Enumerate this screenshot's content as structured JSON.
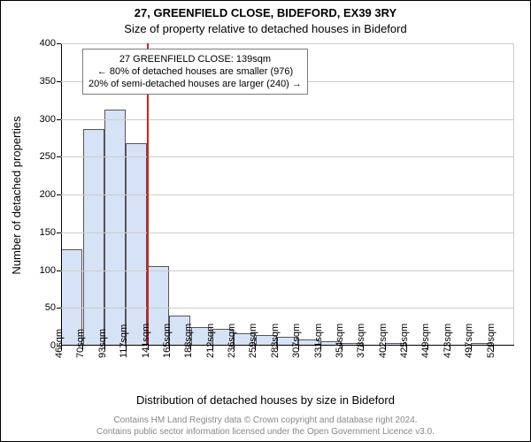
{
  "title1": "27, GREENFIELD CLOSE, BIDEFORD, EX39 3RY",
  "title2": "Size of property relative to detached houses in Bideford",
  "ylabel": "Number of detached properties",
  "xlabel": "Distribution of detached houses by size in Bideford",
  "annotation": {
    "line1": "27 GREENFIELD CLOSE: 139sqm",
    "line2": "← 80% of detached houses are smaller (976)",
    "line3": "20% of semi-detached houses are larger (240) →"
  },
  "footer": {
    "line1": "Contains HM Land Registry data © Crown copyright and database right 2024.",
    "line2": "Contains public sector information licensed under the Open Government Licence v3.0."
  },
  "chart": {
    "type": "histogram",
    "background_color": "#ffffff",
    "grid_color": "#cccccc",
    "bar_fill": "#d6e2f5",
    "bar_border": "#555555",
    "marker_color": "#d62020",
    "ylim": [
      0,
      400
    ],
    "ytick_step": 50,
    "yticks": [
      0,
      50,
      100,
      150,
      200,
      250,
      300,
      350,
      400
    ],
    "xticks": [
      "46sqm",
      "70sqm",
      "93sqm",
      "117sqm",
      "141sqm",
      "165sqm",
      "188sqm",
      "212sqm",
      "236sqm",
      "259sqm",
      "283sqm",
      "307sqm",
      "331sqm",
      "354sqm",
      "378sqm",
      "402sqm",
      "425sqm",
      "449sqm",
      "473sqm",
      "497sqm",
      "520sqm"
    ],
    "values": [
      128,
      287,
      312,
      268,
      105,
      40,
      25,
      22,
      16,
      14,
      12,
      8,
      6,
      3,
      0,
      4,
      0,
      0,
      0,
      4,
      0
    ],
    "marker_index": 4,
    "label_fontsize": 11,
    "title_fontsize": 13
  }
}
